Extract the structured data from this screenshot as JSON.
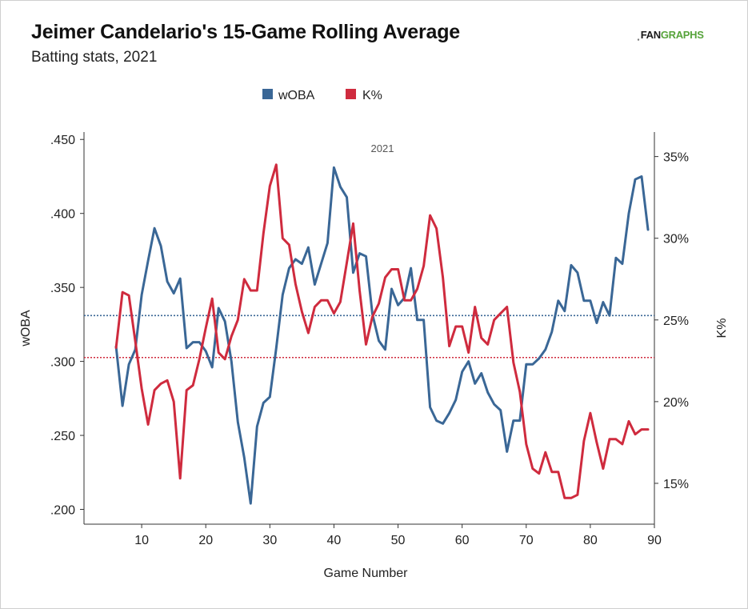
{
  "header": {
    "title": "Jeimer Candelario's 15-Game Rolling Average",
    "subtitle": "Batting stats, 2021",
    "logo_text_1": "FAN",
    "logo_text_2": "GRAPHS"
  },
  "chart_data": {
    "type": "line",
    "title": "Jeimer Candelario's 15-Game Rolling Average",
    "subtitle": "Batting stats, 2021",
    "panel_label": "2021",
    "xlabel": "Game Number",
    "ylabel_left": "wOBA",
    "ylabel_right": "K%",
    "xlim": [
      1,
      90
    ],
    "xticks": [
      10,
      20,
      30,
      40,
      50,
      60,
      70,
      80,
      90
    ],
    "ylim_left": [
      0.19,
      0.455
    ],
    "yticks_left": [
      0.2,
      0.25,
      0.3,
      0.35,
      0.4,
      0.45
    ],
    "ytick_labels_left": [
      ".200",
      ".250",
      ".300",
      ".350",
      ".400",
      ".450"
    ],
    "ylim_right": [
      12.5,
      36.5
    ],
    "yticks_right": [
      15,
      20,
      25,
      30,
      35
    ],
    "ytick_labels_right": [
      "15%",
      "20%",
      "25%",
      "30%",
      "35%"
    ],
    "legend_position": "top-center",
    "grid": false,
    "series": [
      {
        "name": "wOBA",
        "axis": "left",
        "color": "#3a6796",
        "reference_line": 0.331,
        "points": [
          [
            6,
            0.31
          ],
          [
            7,
            0.27
          ],
          [
            8,
            0.298
          ],
          [
            9,
            0.308
          ],
          [
            10,
            0.345
          ],
          [
            11,
            0.368
          ],
          [
            12,
            0.39
          ],
          [
            13,
            0.378
          ],
          [
            14,
            0.354
          ],
          [
            15,
            0.346
          ],
          [
            16,
            0.356
          ],
          [
            17,
            0.309
          ],
          [
            18,
            0.313
          ],
          [
            19,
            0.313
          ],
          [
            20,
            0.307
          ],
          [
            21,
            0.296
          ],
          [
            22,
            0.336
          ],
          [
            23,
            0.327
          ],
          [
            24,
            0.3
          ],
          [
            25,
            0.259
          ],
          [
            26,
            0.235
          ],
          [
            27,
            0.204
          ],
          [
            28,
            0.256
          ],
          [
            29,
            0.272
          ],
          [
            30,
            0.276
          ],
          [
            31,
            0.309
          ],
          [
            32,
            0.345
          ],
          [
            33,
            0.363
          ],
          [
            34,
            0.369
          ],
          [
            35,
            0.366
          ],
          [
            36,
            0.377
          ],
          [
            37,
            0.352
          ],
          [
            38,
            0.366
          ],
          [
            39,
            0.38
          ],
          [
            40,
            0.431
          ],
          [
            41,
            0.418
          ],
          [
            42,
            0.411
          ],
          [
            43,
            0.36
          ],
          [
            44,
            0.373
          ],
          [
            45,
            0.371
          ],
          [
            46,
            0.332
          ],
          [
            47,
            0.314
          ],
          [
            48,
            0.308
          ],
          [
            49,
            0.349
          ],
          [
            50,
            0.338
          ],
          [
            51,
            0.343
          ],
          [
            52,
            0.363
          ],
          [
            53,
            0.328
          ],
          [
            54,
            0.328
          ],
          [
            55,
            0.269
          ],
          [
            56,
            0.26
          ],
          [
            57,
            0.258
          ],
          [
            58,
            0.265
          ],
          [
            59,
            0.274
          ],
          [
            60,
            0.293
          ],
          [
            61,
            0.3
          ],
          [
            62,
            0.285
          ],
          [
            63,
            0.292
          ],
          [
            64,
            0.279
          ],
          [
            65,
            0.271
          ],
          [
            66,
            0.267
          ],
          [
            67,
            0.239
          ],
          [
            68,
            0.26
          ],
          [
            69,
            0.26
          ],
          [
            70,
            0.298
          ],
          [
            71,
            0.298
          ],
          [
            72,
            0.302
          ],
          [
            73,
            0.308
          ],
          [
            74,
            0.32
          ],
          [
            75,
            0.341
          ],
          [
            76,
            0.334
          ],
          [
            77,
            0.365
          ],
          [
            78,
            0.36
          ],
          [
            79,
            0.341
          ],
          [
            80,
            0.341
          ],
          [
            81,
            0.326
          ],
          [
            82,
            0.34
          ],
          [
            83,
            0.331
          ],
          [
            84,
            0.37
          ],
          [
            85,
            0.366
          ],
          [
            86,
            0.4
          ],
          [
            87,
            0.423
          ],
          [
            88,
            0.425
          ],
          [
            89,
            0.389
          ]
        ]
      },
      {
        "name": "K%",
        "axis": "right",
        "color": "#cf2b3e",
        "reference_line": 22.7,
        "points": [
          [
            6,
            23.3
          ],
          [
            7,
            26.7
          ],
          [
            8,
            26.5
          ],
          [
            9,
            23.7
          ],
          [
            10,
            20.8
          ],
          [
            11,
            18.6
          ],
          [
            12,
            20.7
          ],
          [
            13,
            21.1
          ],
          [
            14,
            21.3
          ],
          [
            15,
            20.0
          ],
          [
            16,
            15.3
          ],
          [
            17,
            20.7
          ],
          [
            18,
            21.0
          ],
          [
            19,
            22.6
          ],
          [
            20,
            24.5
          ],
          [
            21,
            26.3
          ],
          [
            22,
            23.0
          ],
          [
            23,
            22.6
          ],
          [
            24,
            24.0
          ],
          [
            25,
            25.0
          ],
          [
            26,
            27.5
          ],
          [
            27,
            26.8
          ],
          [
            28,
            26.8
          ],
          [
            29,
            30.3
          ],
          [
            30,
            33.2
          ],
          [
            31,
            34.5
          ],
          [
            32,
            30.0
          ],
          [
            33,
            29.6
          ],
          [
            34,
            27.2
          ],
          [
            35,
            25.5
          ],
          [
            36,
            24.2
          ],
          [
            37,
            25.8
          ],
          [
            38,
            26.2
          ],
          [
            39,
            26.2
          ],
          [
            40,
            25.4
          ],
          [
            41,
            26.1
          ],
          [
            42,
            28.5
          ],
          [
            43,
            30.9
          ],
          [
            44,
            26.8
          ],
          [
            45,
            23.5
          ],
          [
            46,
            25.2
          ],
          [
            47,
            26.0
          ],
          [
            48,
            27.6
          ],
          [
            49,
            28.1
          ],
          [
            50,
            28.1
          ],
          [
            51,
            26.2
          ],
          [
            52,
            26.2
          ],
          [
            53,
            26.9
          ],
          [
            54,
            28.3
          ],
          [
            55,
            31.4
          ],
          [
            56,
            30.6
          ],
          [
            57,
            27.6
          ],
          [
            58,
            23.4
          ],
          [
            59,
            24.6
          ],
          [
            60,
            24.6
          ],
          [
            61,
            23.0
          ],
          [
            62,
            25.8
          ],
          [
            63,
            23.9
          ],
          [
            64,
            23.5
          ],
          [
            65,
            25.0
          ],
          [
            66,
            25.4
          ],
          [
            67,
            25.8
          ],
          [
            68,
            22.4
          ],
          [
            69,
            20.6
          ],
          [
            70,
            17.4
          ],
          [
            71,
            15.9
          ],
          [
            72,
            15.6
          ],
          [
            73,
            16.9
          ],
          [
            74,
            15.7
          ],
          [
            75,
            15.7
          ],
          [
            76,
            14.1
          ],
          [
            77,
            14.1
          ],
          [
            78,
            14.3
          ],
          [
            79,
            17.6
          ],
          [
            80,
            19.3
          ],
          [
            81,
            17.5
          ],
          [
            82,
            15.9
          ],
          [
            83,
            17.7
          ],
          [
            84,
            17.7
          ],
          [
            85,
            17.4
          ],
          [
            86,
            18.8
          ],
          [
            87,
            18.0
          ],
          [
            88,
            18.3
          ],
          [
            89,
            18.3
          ]
        ]
      }
    ]
  }
}
